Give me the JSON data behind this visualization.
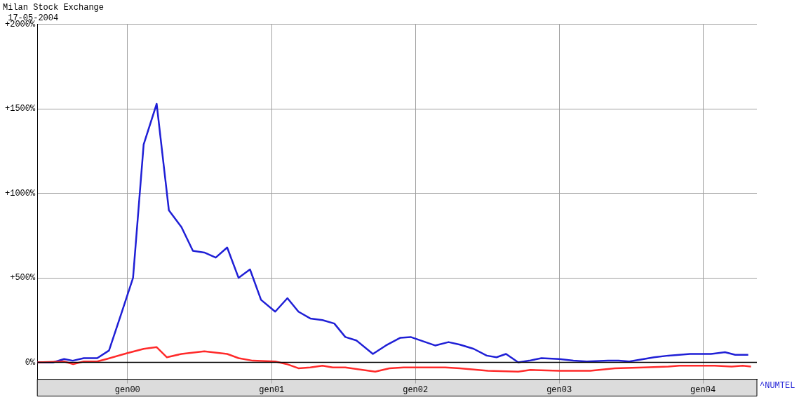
{
  "chart_data": {
    "type": "line",
    "title": "Milan Stock Exchange",
    "subtitle": "17-05-2004",
    "xlim": [
      "1999-05-17",
      "2004-05-17"
    ],
    "xticks": [
      {
        "value": "2000-01-01",
        "label": "gen00"
      },
      {
        "value": "2001-01-01",
        "label": "gen01"
      },
      {
        "value": "2002-01-01",
        "label": "gen02"
      },
      {
        "value": "2003-01-01",
        "label": "gen03"
      },
      {
        "value": "2004-01-01",
        "label": "gen04"
      }
    ],
    "ylim": [
      -100,
      2000
    ],
    "yticks": [
      {
        "value": 0,
        "label": "0%"
      },
      {
        "value": 500,
        "label": "+500%"
      },
      {
        "value": 1000,
        "label": "+1000%"
      },
      {
        "value": 1500,
        "label": "+1500%"
      },
      {
        "value": 2000,
        "label": "+2000%"
      }
    ],
    "grid": true,
    "legend": "right",
    "marker": "none",
    "line_style": "solid",
    "ref_lines": [
      {
        "axis": "y",
        "value": 0,
        "label": null,
        "color": "#000000"
      }
    ],
    "series": [
      {
        "color": "#ff2a2a",
        "x": [
          "1999-05-17",
          "1999-07-24",
          "1999-08-16",
          "1999-09-12",
          "1999-10-16",
          "1999-11-09",
          "2000-01-01",
          "2000-02-11",
          "2000-03-15",
          "2000-04-10",
          "2000-05-17",
          "2000-07-14",
          "2000-09-10",
          "2000-10-09",
          "2000-11-14",
          "2001-01-10",
          "2001-02-08",
          "2001-03-10",
          "2001-04-09",
          "2001-05-10",
          "2001-06-05",
          "2001-07-07",
          "2001-09-21",
          "2001-10-27",
          "2001-12-02",
          "2002-03-18",
          "2002-04-24",
          "2002-07-04",
          "2002-09-19",
          "2002-10-20",
          "2003-01-01",
          "2003-03-21",
          "2003-05-22",
          "2003-08-04",
          "2003-10-05",
          "2003-11-02",
          "2003-12-25",
          "2004-01-31",
          "2004-03-14",
          "2004-04-11",
          "2004-05-02"
        ],
        "values": [
          0,
          5,
          -10,
          5,
          5,
          20,
          55,
          80,
          90,
          30,
          50,
          65,
          50,
          25,
          10,
          5,
          -10,
          -35,
          -30,
          -20,
          -30,
          -30,
          -55,
          -35,
          -30,
          -30,
          -35,
          -50,
          -55,
          -45,
          -50,
          -50,
          -35,
          -30,
          -25,
          -20,
          -20,
          -20,
          -25,
          -20,
          -25
        ]
      },
      {
        "name": "^NUMTEL",
        "color": "#1f1fd6",
        "x": [
          "1999-05-17",
          "1999-06-26",
          "1999-07-24",
          "1999-08-15",
          "1999-09-12",
          "1999-10-16",
          "1999-11-15",
          "1999-12-15",
          "2000-01-15",
          "2000-02-11",
          "2000-03-15",
          "2000-04-15",
          "2000-05-17",
          "2000-06-15",
          "2000-07-14",
          "2000-08-12",
          "2000-09-10",
          "2000-10-09",
          "2000-11-07",
          "2000-12-05",
          "2001-01-10",
          "2001-02-10",
          "2001-03-10",
          "2001-04-09",
          "2001-05-10",
          "2001-06-09",
          "2001-07-07",
          "2001-08-04",
          "2001-09-15",
          "2001-10-18",
          "2001-11-23",
          "2001-12-20",
          "2002-02-20",
          "2002-03-26",
          "2002-04-24",
          "2002-05-29",
          "2002-07-01",
          "2002-07-26",
          "2002-08-19",
          "2002-09-19",
          "2002-10-17",
          "2002-11-17",
          "2003-01-01",
          "2003-02-06",
          "2003-03-12",
          "2003-05-05",
          "2003-06-01",
          "2003-06-28",
          "2003-08-04",
          "2003-08-30",
          "2003-10-05",
          "2003-11-02",
          "2003-11-29",
          "2003-12-25",
          "2004-01-21",
          "2004-02-26",
          "2004-03-23",
          "2004-04-25"
        ],
        "values": [
          0,
          0,
          20,
          10,
          25,
          25,
          70,
          280,
          500,
          1290,
          1530,
          900,
          800,
          660,
          650,
          620,
          680,
          500,
          550,
          370,
          300,
          380,
          300,
          260,
          250,
          230,
          150,
          130,
          50,
          100,
          145,
          150,
          100,
          120,
          105,
          80,
          40,
          30,
          50,
          0,
          10,
          25,
          20,
          10,
          5,
          10,
          10,
          5,
          20,
          30,
          40,
          45,
          50,
          50,
          50,
          60,
          45,
          45
        ]
      }
    ]
  }
}
